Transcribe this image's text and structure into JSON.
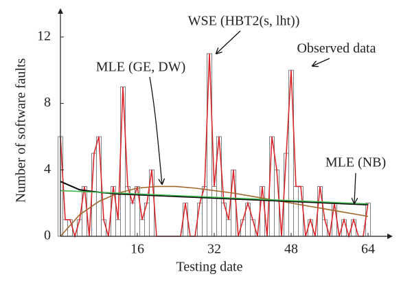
{
  "chart_data": {
    "type": "bar",
    "xlabel": "Testing date",
    "ylabel": "Number of software faults",
    "x": [
      0,
      1,
      2,
      3,
      4,
      5,
      6,
      7,
      8,
      9,
      10,
      11,
      12,
      13,
      14,
      15,
      16,
      17,
      18,
      19,
      20,
      21,
      22,
      23,
      24,
      25,
      26,
      27,
      28,
      29,
      30,
      31,
      32,
      33,
      34,
      35,
      36,
      37,
      38,
      39,
      40,
      41,
      42,
      43,
      44,
      45,
      46,
      47,
      48,
      49,
      50,
      51,
      52,
      53,
      54,
      55,
      56,
      57,
      58,
      59,
      60,
      61,
      62,
      63,
      64
    ],
    "values": [
      6,
      1,
      1,
      0,
      1,
      3,
      0,
      5,
      6,
      1,
      0,
      3,
      1,
      9,
      3,
      2,
      3,
      1,
      2,
      4,
      0,
      0,
      0,
      0,
      0,
      0,
      2,
      0,
      0,
      2,
      3,
      11,
      3,
      6,
      2,
      1,
      4,
      0,
      1,
      2,
      1,
      0,
      3,
      0,
      6,
      4,
      0,
      5,
      10,
      3,
      3,
      0,
      1,
      0,
      3,
      1,
      0,
      2,
      0,
      1,
      0,
      1,
      0,
      0,
      2
    ],
    "bar_color": "#7f7f7f",
    "line_color": "#d9252a",
    "series": [
      {
        "color": "#a0662a",
        "x": [
          0,
          4,
          8,
          12,
          16,
          20,
          24,
          28,
          32,
          36,
          40,
          44,
          48,
          52,
          56,
          60,
          64
        ],
        "values": [
          0,
          1.3,
          2.1,
          2.6,
          2.9,
          3.0,
          3.0,
          2.9,
          2.75,
          2.6,
          2.4,
          2.2,
          2.0,
          1.8,
          1.6,
          1.4,
          1.2
        ]
      },
      {
        "color": "#000000",
        "x": [
          0,
          4,
          8,
          12,
          16,
          20,
          24,
          28,
          32,
          36,
          40,
          44,
          48,
          52,
          56,
          60,
          64
        ],
        "values": [
          3.3,
          2.8,
          2.65,
          2.55,
          2.5,
          2.45,
          2.4,
          2.35,
          2.3,
          2.25,
          2.2,
          2.15,
          2.1,
          2.05,
          2.0,
          1.95,
          1.9
        ]
      },
      {
        "color": "#3cb34a",
        "x": [
          0,
          4,
          8,
          12,
          16,
          20,
          24,
          28,
          32,
          36,
          40,
          44,
          48,
          52,
          56,
          60,
          64
        ],
        "values": [
          2.75,
          2.7,
          2.65,
          2.6,
          2.55,
          2.5,
          2.45,
          2.4,
          2.35,
          2.3,
          2.25,
          2.2,
          2.15,
          2.1,
          2.05,
          2.0,
          1.95
        ]
      }
    ],
    "annotations": [
      "WSE (HBT2(s, lht))",
      "Observed data",
      "MLE (GE, DW)",
      "MLE (NB)"
    ],
    "xlim": [
      0,
      68
    ],
    "ylim": [
      0,
      13.4
    ],
    "xticks": [
      16,
      32,
      48,
      64
    ],
    "yticks": [
      0,
      4,
      8,
      12
    ]
  }
}
